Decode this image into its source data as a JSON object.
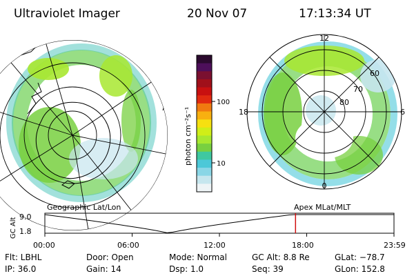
{
  "header": {
    "instrument": "Ultraviolet Imager",
    "date": "20 Nov 07",
    "time": "17:13:34 UT"
  },
  "colorbar": {
    "unit_label": "photon cm⁻²s⁻¹",
    "ticks": [
      "100",
      "10"
    ],
    "colors": [
      "#2b0a2e",
      "#4d0f5a",
      "#7a1030",
      "#a0101a",
      "#c81010",
      "#e02a10",
      "#f07a10",
      "#f8b010",
      "#f6e010",
      "#d0ee18",
      "#a8e830",
      "#78d040",
      "#3fc8a0",
      "#4cc8d8",
      "#8ad6e6",
      "#c6e6ee",
      "#eef4f6"
    ]
  },
  "left_map": {
    "caption": "Geographic Lat/Lon"
  },
  "right_map": {
    "caption": "Apex MLat/MLT",
    "mlt_labels": {
      "top": "12",
      "left": "18",
      "right": "6",
      "bottom": "0"
    },
    "lat_labels": [
      "60",
      "70",
      "80"
    ]
  },
  "altitude_plot": {
    "axis_label": "GC Alt",
    "y_ticks": [
      "9.0",
      "1.8"
    ],
    "x_ticks": [
      "00:00",
      "06:00",
      "12:00",
      "18:00",
      "23:59"
    ],
    "current_time_marker_hours": 17.23,
    "marker_color": "#d01010"
  },
  "status": {
    "filter": "Flt: LBHL",
    "ip": "IP: 36.0",
    "door": "Door: Open",
    "gain": "Gain: 14",
    "mode": "Mode: Normal",
    "dsp": "Dsp:    1.0",
    "gc_alt": "GC Alt: 8.8 Re",
    "seq": "Seq: 39",
    "glat": "GLat: −78.7",
    "glon": "GLon: 152.8"
  }
}
